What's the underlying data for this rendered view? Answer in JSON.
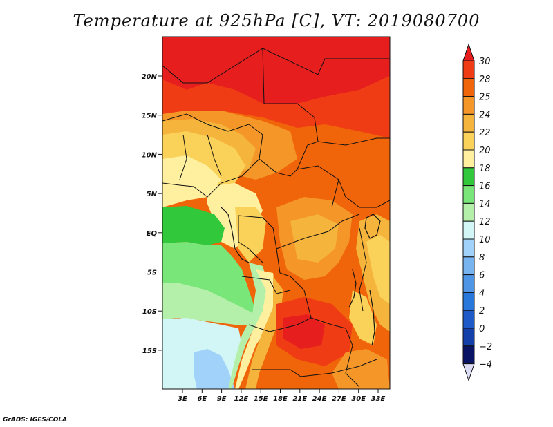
{
  "title": "Temperature at 925hPa [C], VT: 2019080700",
  "credit": "GrADS: IGES/COLA",
  "map": {
    "lat_ticks": [
      "20N",
      "15N",
      "10N",
      "5N",
      "EQ",
      "5S",
      "10S",
      "15S"
    ],
    "lon_ticks": [
      "3E",
      "6E",
      "9E",
      "12E",
      "15E",
      "18E",
      "21E",
      "24E",
      "27E",
      "30E",
      "33E"
    ]
  },
  "colorbar": {
    "labels": [
      "30",
      "28",
      "25",
      "24",
      "22",
      "20",
      "18",
      "16",
      "14",
      "12",
      "10",
      "8",
      "6",
      "4",
      "2",
      "0",
      "-2",
      "-4"
    ],
    "colors": [
      "#e61e1e",
      "#f03c14",
      "#f0640a",
      "#f59628",
      "#f5b43c",
      "#fad25a",
      "#fff0a0",
      "#32c83c",
      "#78e678",
      "#b4f0aa",
      "#d2f5f5",
      "#a0d2fa",
      "#78b4f0",
      "#5096e6",
      "#2878dc",
      "#1e5ac8",
      "#1440aa",
      "#0a1464",
      "#dcdcf5"
    ]
  }
}
